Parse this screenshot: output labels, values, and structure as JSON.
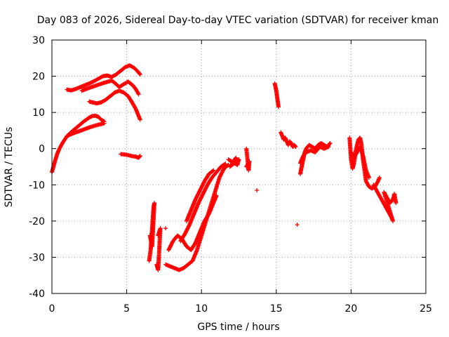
{
  "chart_data": {
    "type": "scatter",
    "title": "Day 083 of 2026, Sidereal Day-to-day VTEC variation (SDTVAR) for receiver kman",
    "xlabel": "GPS time / hours",
    "ylabel": "SDTVAR / TECUs",
    "xlim": [
      0,
      25
    ],
    "ylim": [
      -40,
      30
    ],
    "xticks": [
      0,
      5,
      10,
      15,
      20,
      25
    ],
    "yticks": [
      -40,
      -30,
      -20,
      -10,
      0,
      10,
      20,
      30
    ],
    "grid": true,
    "marker": "plus",
    "color": "#ff0000",
    "series": [
      {
        "name": "arc-rise-main",
        "points": [
          [
            0.0,
            -6.5
          ],
          [
            0.1,
            -5.0
          ],
          [
            0.2,
            -3.5
          ],
          [
            0.35,
            -1.5
          ],
          [
            0.5,
            0.0
          ],
          [
            0.7,
            1.5
          ],
          [
            0.9,
            2.8
          ],
          [
            1.1,
            3.8
          ],
          [
            1.3,
            4.6
          ],
          [
            1.5,
            5.3
          ],
          [
            1.7,
            6.0
          ],
          [
            1.9,
            6.7
          ],
          [
            2.1,
            7.4
          ],
          [
            2.3,
            8.0
          ],
          [
            2.5,
            8.6
          ],
          [
            2.7,
            9.0
          ],
          [
            2.9,
            9.1
          ],
          [
            3.1,
            8.8
          ],
          [
            3.3,
            8.0
          ],
          [
            3.5,
            7.5
          ]
        ]
      },
      {
        "name": "arc-rise-lower",
        "points": [
          [
            1.0,
            3.5
          ],
          [
            1.4,
            4.2
          ],
          [
            1.8,
            4.8
          ],
          [
            2.2,
            5.4
          ],
          [
            2.6,
            6.0
          ],
          [
            3.0,
            6.5
          ],
          [
            3.5,
            7.0
          ]
        ]
      },
      {
        "name": "arc-upper-a",
        "points": [
          [
            1.0,
            16.3
          ],
          [
            1.3,
            16.1
          ],
          [
            1.6,
            16.5
          ],
          [
            1.9,
            17.0
          ],
          [
            2.2,
            17.5
          ],
          [
            2.5,
            18.0
          ],
          [
            2.8,
            18.6
          ],
          [
            3.1,
            19.3
          ],
          [
            3.4,
            20.0
          ],
          [
            3.7,
            20.2
          ],
          [
            4.0,
            19.8
          ],
          [
            4.3,
            20.5
          ],
          [
            4.6,
            21.5
          ],
          [
            4.9,
            22.5
          ],
          [
            5.2,
            23.0
          ],
          [
            5.5,
            22.3
          ],
          [
            5.7,
            21.5
          ],
          [
            5.9,
            20.5
          ]
        ]
      },
      {
        "name": "arc-upper-b",
        "points": [
          [
            2.0,
            16.0
          ],
          [
            2.5,
            16.8
          ],
          [
            3.0,
            17.5
          ],
          [
            3.5,
            18.2
          ],
          [
            4.0,
            18.8
          ],
          [
            4.3,
            17.8
          ],
          [
            4.5,
            17.0
          ],
          [
            4.8,
            17.8
          ],
          [
            5.1,
            18.5
          ],
          [
            5.4,
            17.5
          ],
          [
            5.6,
            16.5
          ],
          [
            5.8,
            15.0
          ]
        ]
      },
      {
        "name": "arc-upper-c",
        "points": [
          [
            2.5,
            13.0
          ],
          [
            3.0,
            12.5
          ],
          [
            3.3,
            12.8
          ],
          [
            3.6,
            13.5
          ],
          [
            3.9,
            14.5
          ],
          [
            4.2,
            15.5
          ],
          [
            4.5,
            16.0
          ],
          [
            4.8,
            15.5
          ],
          [
            5.1,
            14.5
          ],
          [
            5.4,
            12.5
          ],
          [
            5.6,
            11.0
          ],
          [
            5.8,
            9.0
          ],
          [
            5.9,
            8.0
          ]
        ]
      },
      {
        "name": "flat-minus-2",
        "points": [
          [
            4.6,
            -1.5
          ],
          [
            4.8,
            -1.6
          ],
          [
            5.0,
            -1.7
          ],
          [
            5.2,
            -1.9
          ],
          [
            5.4,
            -2.1
          ],
          [
            5.6,
            -2.2
          ],
          [
            5.8,
            -2.5
          ],
          [
            5.9,
            -2.0
          ]
        ]
      },
      {
        "name": "spike-6.5-7",
        "points": [
          [
            6.5,
            -31.0
          ],
          [
            6.6,
            -28.0
          ],
          [
            6.65,
            -25.0
          ],
          [
            6.7,
            -22.0
          ],
          [
            6.75,
            -19.0
          ],
          [
            6.8,
            -16.0
          ],
          [
            6.85,
            -15.0
          ],
          [
            6.7,
            -27.0
          ],
          [
            6.55,
            -24.0
          ]
        ]
      },
      {
        "name": "spike-7.2",
        "points": [
          [
            7.0,
            -32.0
          ],
          [
            7.1,
            -33.5
          ],
          [
            7.15,
            -30.0
          ],
          [
            7.2,
            -26.0
          ],
          [
            7.25,
            -22.0
          ],
          [
            7.1,
            -24.0
          ]
        ]
      },
      {
        "name": "isolated-7.6",
        "points": [
          [
            7.6,
            -22.0
          ]
        ]
      },
      {
        "name": "arc-bottom",
        "points": [
          [
            7.6,
            -32.0
          ],
          [
            7.9,
            -32.5
          ],
          [
            8.2,
            -33.0
          ],
          [
            8.5,
            -33.5
          ],
          [
            8.8,
            -33.0
          ],
          [
            9.1,
            -32.0
          ],
          [
            9.4,
            -31.0
          ],
          [
            9.7,
            -28.0
          ],
          [
            10.0,
            -24.0
          ],
          [
            10.3,
            -20.0
          ],
          [
            10.6,
            -16.0
          ],
          [
            10.9,
            -12.0
          ],
          [
            11.2,
            -8.0
          ],
          [
            11.5,
            -5.5
          ],
          [
            11.8,
            -4.5
          ]
        ]
      },
      {
        "name": "arc-mid-1",
        "points": [
          [
            7.8,
            -28.0
          ],
          [
            8.1,
            -25.5
          ],
          [
            8.4,
            -24.0
          ],
          [
            8.7,
            -25.0
          ],
          [
            9.0,
            -27.0
          ],
          [
            9.3,
            -28.0
          ],
          [
            9.6,
            -26.0
          ],
          [
            9.9,
            -23.0
          ],
          [
            10.2,
            -20.0
          ],
          [
            10.5,
            -18.0
          ],
          [
            10.8,
            -15.0
          ],
          [
            11.0,
            -13.0
          ]
        ]
      },
      {
        "name": "arc-mid-2",
        "points": [
          [
            8.6,
            -25.5
          ],
          [
            8.9,
            -23.5
          ],
          [
            9.2,
            -21.0
          ],
          [
            9.5,
            -18.0
          ],
          [
            9.8,
            -15.0
          ],
          [
            10.1,
            -12.5
          ],
          [
            10.4,
            -10.0
          ],
          [
            10.7,
            -8.0
          ],
          [
            11.0,
            -6.5
          ],
          [
            11.3,
            -5.0
          ],
          [
            11.6,
            -4.2
          ]
        ]
      },
      {
        "name": "arc-mid-3",
        "points": [
          [
            9.0,
            -20.0
          ],
          [
            9.3,
            -17.0
          ],
          [
            9.6,
            -14.0
          ],
          [
            9.9,
            -11.5
          ],
          [
            10.2,
            -9.0
          ],
          [
            10.5,
            -7.0
          ],
          [
            10.8,
            -6.0
          ]
        ]
      },
      {
        "name": "cluster-12",
        "points": [
          [
            11.8,
            -3.0
          ],
          [
            12.0,
            -3.5
          ],
          [
            12.2,
            -4.0
          ],
          [
            12.4,
            -4.5
          ],
          [
            12.5,
            -3.0
          ],
          [
            11.9,
            -5.0
          ],
          [
            12.3,
            -2.5
          ]
        ]
      },
      {
        "name": "cluster-13",
        "points": [
          [
            13.0,
            0.0
          ],
          [
            13.05,
            -2.0
          ],
          [
            13.1,
            -4.0
          ],
          [
            13.15,
            -6.0
          ],
          [
            13.2,
            -3.5
          ],
          [
            13.0,
            -5.0
          ]
        ]
      },
      {
        "name": "isolated-13.7",
        "points": [
          [
            13.7,
            -11.5
          ]
        ]
      },
      {
        "name": "spike-15",
        "points": [
          [
            14.9,
            18.0
          ],
          [
            14.95,
            17.0
          ],
          [
            15.0,
            16.0
          ],
          [
            15.05,
            14.5
          ],
          [
            15.1,
            13.0
          ],
          [
            15.15,
            11.5
          ]
        ]
      },
      {
        "name": "arc-after-15",
        "points": [
          [
            15.3,
            4.5
          ],
          [
            15.4,
            3.5
          ],
          [
            15.5,
            2.5
          ],
          [
            15.6,
            3.0
          ],
          [
            15.7,
            2.0
          ],
          [
            15.8,
            1.0
          ],
          [
            15.9,
            2.0
          ],
          [
            16.0,
            1.5
          ],
          [
            16.1,
            0.5
          ],
          [
            16.2,
            1.0
          ],
          [
            16.3,
            0.5
          ]
        ]
      },
      {
        "name": "isolated-16.4",
        "points": [
          [
            16.4,
            -21.0
          ]
        ]
      },
      {
        "name": "arc-17-18",
        "points": [
          [
            16.6,
            -7.0
          ],
          [
            16.7,
            -5.0
          ],
          [
            16.8,
            -3.0
          ],
          [
            16.9,
            -1.0
          ],
          [
            17.0,
            0.0
          ],
          [
            17.2,
            1.0
          ],
          [
            17.4,
            0.5
          ],
          [
            17.6,
            0.0
          ],
          [
            17.8,
            1.0
          ],
          [
            18.0,
            1.5
          ],
          [
            18.2,
            1.0
          ],
          [
            18.4,
            0.5
          ],
          [
            18.6,
            1.5
          ]
        ]
      },
      {
        "name": "arc-17-18b",
        "points": [
          [
            16.6,
            -4.0
          ],
          [
            16.8,
            -2.0
          ],
          [
            17.0,
            -1.0
          ],
          [
            17.3,
            -0.5
          ],
          [
            17.6,
            -1.0
          ],
          [
            17.9,
            0.5
          ],
          [
            18.2,
            0.0
          ],
          [
            18.5,
            0.5
          ]
        ]
      },
      {
        "name": "arc-20",
        "points": [
          [
            19.9,
            3.0
          ],
          [
            19.95,
            0.0
          ],
          [
            20.0,
            -3.0
          ],
          [
            20.1,
            -5.5
          ],
          [
            20.2,
            -4.0
          ],
          [
            20.3,
            -1.0
          ],
          [
            20.4,
            1.0
          ],
          [
            20.5,
            2.5
          ],
          [
            20.6,
            3.0
          ],
          [
            20.7,
            1.0
          ],
          [
            20.8,
            -3.0
          ],
          [
            20.9,
            -6.0
          ],
          [
            21.0,
            -9.0
          ],
          [
            21.2,
            -10.5
          ],
          [
            21.4,
            -11.0
          ],
          [
            21.6,
            -10.5
          ],
          [
            21.8,
            -9.0
          ],
          [
            21.9,
            -8.0
          ]
        ]
      },
      {
        "name": "arc-20b",
        "points": [
          [
            20.0,
            -1.0
          ],
          [
            20.2,
            -2.5
          ],
          [
            20.4,
            -1.0
          ],
          [
            20.6,
            0.5
          ],
          [
            20.8,
            -2.0
          ],
          [
            21.0,
            -6.0
          ],
          [
            21.2,
            -8.0
          ]
        ]
      },
      {
        "name": "tail-22",
        "points": [
          [
            21.5,
            -10.0
          ],
          [
            21.7,
            -11.5
          ],
          [
            21.9,
            -13.0
          ],
          [
            22.1,
            -14.5
          ],
          [
            22.3,
            -16.0
          ],
          [
            22.5,
            -17.5
          ],
          [
            22.7,
            -19.0
          ],
          [
            22.8,
            -20.0
          ],
          [
            22.2,
            -12.0
          ],
          [
            22.4,
            -13.5
          ],
          [
            22.6,
            -15.0
          ],
          [
            22.8,
            -14.0
          ],
          [
            22.9,
            -12.5
          ],
          [
            23.0,
            -15.0
          ]
        ]
      }
    ]
  }
}
